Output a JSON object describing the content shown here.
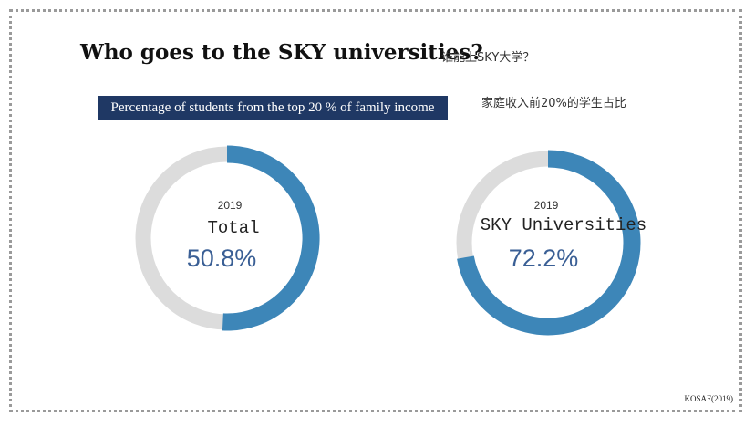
{
  "header": {
    "title": "Who goes to the SKY universities?",
    "title_cn": "谁能上SKY大学？",
    "subtitle": "Percentage of students from the top 20 % of family income",
    "subtitle_cn": "家庭收入前20%的学生占比"
  },
  "footer": {
    "source": "KOSAF(2019)"
  },
  "colors": {
    "filled": "#3d86b8",
    "track": "#dcdcdc",
    "subtitle_bg": "#1f3864",
    "value_text": "#3a5f95"
  },
  "chart_data": [
    {
      "type": "pie",
      "variant": "donut",
      "year": "2019",
      "label": "Total",
      "value": 50.8,
      "value_label": "50.8%",
      "max": 100
    },
    {
      "type": "pie",
      "variant": "donut",
      "year": "2019",
      "label": "SKY Universities",
      "value": 72.2,
      "value_label": "72.2%",
      "max": 100
    }
  ]
}
